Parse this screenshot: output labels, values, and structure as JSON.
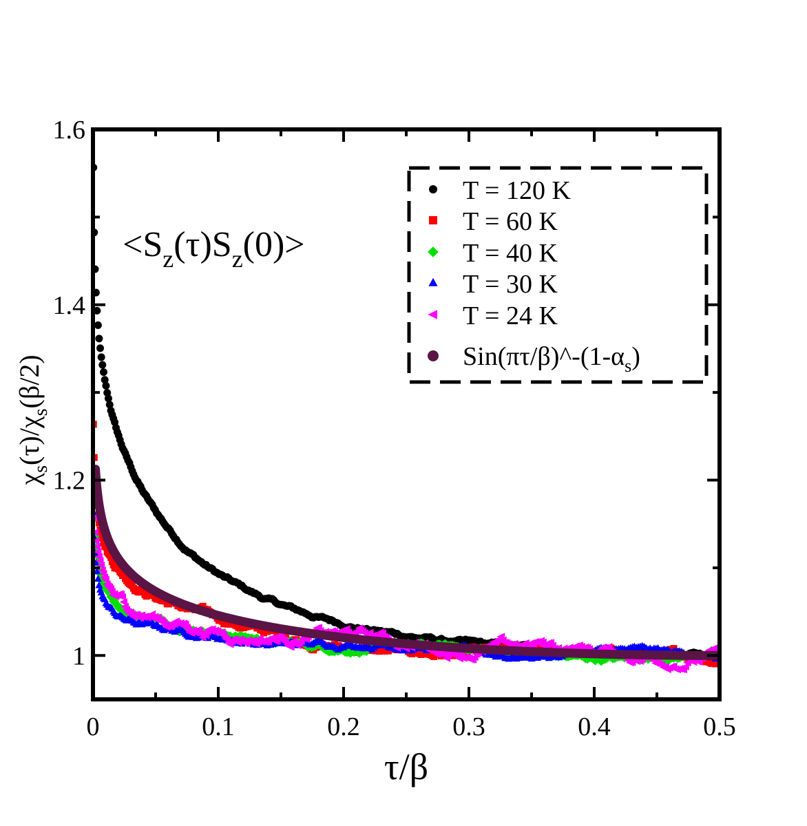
{
  "chart_data": {
    "type": "scatter",
    "title": "",
    "annotation": {
      "open": "<S",
      "sub1": "z",
      "mid": "(τ)S",
      "sub2": "z",
      "close": "(0)>"
    },
    "xlabel": "τ/β",
    "ylabel": {
      "a": "χ",
      "a_sub": "s",
      "b": "(τ)/χ",
      "b_sub": "s",
      "c": "(β/2)"
    },
    "xlim": [
      0,
      0.5
    ],
    "ylim": [
      0.95,
      1.6
    ],
    "xticks": [
      {
        "value": 0,
        "label": "0"
      },
      {
        "value": 0.1,
        "label": "0.1"
      },
      {
        "value": 0.2,
        "label": "0.2"
      },
      {
        "value": 0.3,
        "label": "0.3"
      },
      {
        "value": 0.4,
        "label": "0.4"
      },
      {
        "value": 0.5,
        "label": "0.5"
      }
    ],
    "yticks": [
      {
        "value": 1.0,
        "label": "1"
      },
      {
        "value": 1.2,
        "label": "1.2"
      },
      {
        "value": 1.4,
        "label": "1.4"
      },
      {
        "value": 1.6,
        "label": "1.6"
      }
    ],
    "legend_position": "top-right",
    "series": [
      {
        "name": "T = 120 K",
        "color": "#000000",
        "marker": "circle",
        "alpha_s": 0.938,
        "amp": 0.055,
        "drift": 0.0,
        "noise": 0.003,
        "shape": 0.55,
        "freq": 0.0
      },
      {
        "name": "T = 60 K",
        "color": "#ff0000",
        "marker": "square",
        "alpha_s": 0.965,
        "amp": 0.0,
        "drift": -0.006,
        "noise": 0.005,
        "shape": 0.3,
        "freq": 21.0
      },
      {
        "name": "T = 40 K",
        "color": "#00e000",
        "marker": "diamond",
        "alpha_s": 0.972,
        "amp": -0.02,
        "drift": -0.002,
        "noise": 0.004,
        "shape": 0.2,
        "freq": 27.0
      },
      {
        "name": "T = 30 K",
        "color": "#0000ff",
        "marker": "triangle-up",
        "alpha_s": 0.975,
        "amp": -0.025,
        "drift": 0.0,
        "noise": 0.004,
        "shape": 0.2,
        "freq": 33.0
      },
      {
        "name": "T = 24 K",
        "color": "#ff00ff",
        "marker": "triangle-left",
        "alpha_s": 0.972,
        "amp": -0.02,
        "drift": 0.005,
        "noise": 0.008,
        "shape": 0.2,
        "freq": 38.0
      }
    ],
    "fit": {
      "name_pre": "Sin(πτ/β)^-(1-α",
      "name_sub": "s",
      "name_post": ")",
      "color": "#5a1446",
      "alpha_s": 0.962,
      "x_range": [
        0.002,
        0.5
      ]
    }
  }
}
